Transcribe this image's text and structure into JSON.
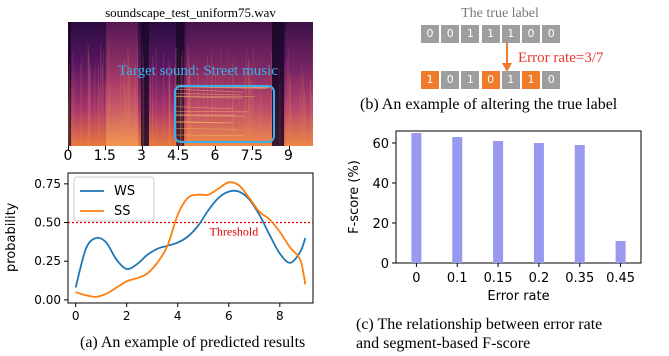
{
  "spectrogram": {
    "filename": "soundscape_test_uniform75.wav",
    "annotation": "Target sound: Street music",
    "xticks": [
      "0",
      "1.5",
      "3",
      "4.5",
      "6",
      "7.5",
      "9"
    ]
  },
  "prob_chart": {
    "caption": "(a) An example of predicted results",
    "ylabel": "probability",
    "threshold_label": "Threshold"
  },
  "label_example": {
    "title": "The true label",
    "true_label": [
      0,
      0,
      1,
      1,
      1,
      0,
      0
    ],
    "altered_label": [
      1,
      0,
      1,
      0,
      1,
      1,
      0
    ],
    "error_text": "Error rate=3/7",
    "caption": "(b) An example of altering the true label"
  },
  "fscore_chart": {
    "caption_line1": "(c)  The relationship between error rate",
    "caption_line2": "and  segment-based F-score"
  },
  "colors": {
    "ws": "#1f77b4",
    "ss": "#ff7f0e",
    "threshold": "#e00000",
    "bar": "#9999f0",
    "cell_gray": "#9e9e9e",
    "cell_orange": "#f07b2a",
    "annotation": "#3ab0ec"
  },
  "chart_data": [
    {
      "type": "line",
      "xlabel": "",
      "ylabel": "probability",
      "xlim": [
        -0.3,
        9.3
      ],
      "ylim": [
        -0.02,
        0.82
      ],
      "xticks": [
        0,
        2,
        4,
        6,
        8
      ],
      "yticks": [
        0.0,
        0.25,
        0.5,
        0.75
      ],
      "legend": "top-left",
      "threshold": 0.5,
      "series": [
        {
          "name": "WS",
          "x": [
            0,
            0.4,
            0.8,
            1.2,
            1.6,
            2.0,
            2.4,
            2.8,
            3.2,
            3.6,
            4.0,
            4.4,
            4.8,
            5.2,
            5.6,
            6.0,
            6.4,
            6.8,
            7.2,
            7.6,
            8.0,
            8.4,
            8.8,
            9.0
          ],
          "y": [
            0.08,
            0.33,
            0.4,
            0.37,
            0.26,
            0.2,
            0.23,
            0.29,
            0.33,
            0.35,
            0.37,
            0.41,
            0.48,
            0.58,
            0.66,
            0.7,
            0.7,
            0.65,
            0.55,
            0.42,
            0.3,
            0.24,
            0.31,
            0.4
          ]
        },
        {
          "name": "SS",
          "x": [
            0,
            0.4,
            0.8,
            1.2,
            1.6,
            2.0,
            2.4,
            2.8,
            3.2,
            3.6,
            4.0,
            4.4,
            4.8,
            5.2,
            5.6,
            6.0,
            6.4,
            6.8,
            7.2,
            7.6,
            8.0,
            8.4,
            8.8,
            9.0
          ],
          "y": [
            0.05,
            0.03,
            0.02,
            0.04,
            0.08,
            0.12,
            0.14,
            0.17,
            0.24,
            0.35,
            0.55,
            0.66,
            0.68,
            0.68,
            0.72,
            0.76,
            0.74,
            0.66,
            0.57,
            0.52,
            0.44,
            0.34,
            0.26,
            0.1
          ]
        }
      ]
    },
    {
      "type": "bar",
      "categories": [
        "0",
        "0.1",
        "0.15",
        "0.2",
        "0.35",
        "0.45"
      ],
      "values": [
        65,
        63,
        61,
        60,
        59,
        11
      ],
      "xlabel": "Error rate",
      "ylabel": "F-score (%)",
      "ylim": [
        0,
        66
      ],
      "yticks": [
        0,
        20,
        40,
        60
      ]
    }
  ]
}
